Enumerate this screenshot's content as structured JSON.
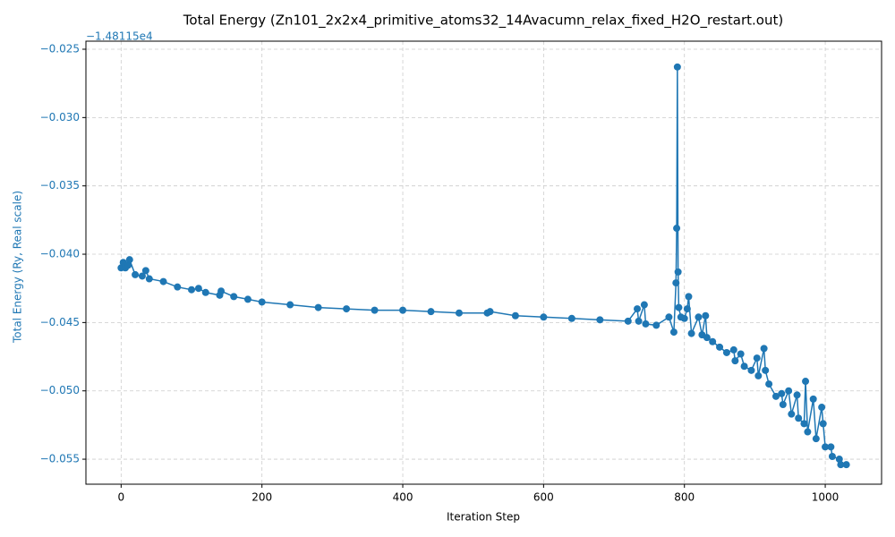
{
  "chart_data": {
    "type": "line",
    "title": "Total Energy (Zn101_2x2x4_primitive_atoms32_14Avacumn_relax_fixed_H2O_restart.out)",
    "xlabel": "Iteration Step",
    "ylabel": "Total Energy (Ry, Real scale)",
    "y_offset_label": "−1.48115e4",
    "color": "#1f77b4",
    "grid": true,
    "x": [
      0,
      3,
      6,
      10,
      12,
      20,
      30,
      35,
      40,
      60,
      80,
      100,
      110,
      120,
      140,
      142,
      160,
      180,
      200,
      240,
      280,
      320,
      360,
      400,
      440,
      480,
      520,
      524,
      560,
      600,
      640,
      680,
      720,
      733,
      735,
      743,
      745,
      760,
      778,
      785,
      788,
      789,
      790,
      791,
      792,
      795,
      800,
      804,
      806,
      810,
      820,
      825,
      830,
      832,
      840,
      850,
      860,
      870,
      872,
      880,
      885,
      895,
      903,
      905,
      913,
      915,
      920,
      930,
      938,
      940,
      948,
      952,
      960,
      962,
      970,
      972,
      975,
      983,
      987,
      995,
      997,
      1000,
      1008,
      1010,
      1020,
      1022,
      1030
    ],
    "values": [
      -0.041,
      -0.0406,
      -0.041,
      -0.0408,
      -0.0404,
      -0.0415,
      -0.0416,
      -0.0412,
      -0.0418,
      -0.042,
      -0.0424,
      -0.0426,
      -0.0425,
      -0.0428,
      -0.043,
      -0.0427,
      -0.0431,
      -0.0433,
      -0.0435,
      -0.0437,
      -0.0439,
      -0.044,
      -0.0441,
      -0.0441,
      -0.0442,
      -0.0443,
      -0.0443,
      -0.0442,
      -0.0445,
      -0.0446,
      -0.0447,
      -0.0448,
      -0.0449,
      -0.044,
      -0.0449,
      -0.0437,
      -0.0451,
      -0.0452,
      -0.0446,
      -0.0457,
      -0.0421,
      -0.0381,
      -0.0263,
      -0.0413,
      -0.0439,
      -0.0446,
      -0.0447,
      -0.044,
      -0.0431,
      -0.0458,
      -0.0446,
      -0.0459,
      -0.0445,
      -0.0461,
      -0.0464,
      -0.0468,
      -0.0472,
      -0.047,
      -0.0478,
      -0.0473,
      -0.0482,
      -0.0485,
      -0.0476,
      -0.0489,
      -0.0469,
      -0.0485,
      -0.0495,
      -0.0504,
      -0.0502,
      -0.051,
      -0.05,
      -0.0517,
      -0.0503,
      -0.052,
      -0.0524,
      -0.0493,
      -0.053,
      -0.0506,
      -0.0535,
      -0.0512,
      -0.0524,
      -0.0541,
      -0.0541,
      -0.0548,
      -0.055,
      -0.0554,
      -0.0554
    ],
    "xlim": [
      -50,
      1080
    ],
    "ylim": [
      -0.05683,
      -0.02441
    ],
    "xticks": [
      0,
      200,
      400,
      600,
      800,
      1000
    ],
    "yticks": [
      {
        "value": -0.025,
        "label": "−0.025"
      },
      {
        "value": -0.03,
        "label": "−0.030"
      },
      {
        "value": -0.035,
        "label": "−0.035"
      },
      {
        "value": -0.04,
        "label": "−0.040"
      },
      {
        "value": -0.045,
        "label": "−0.045"
      },
      {
        "value": -0.05,
        "label": "−0.050"
      },
      {
        "value": -0.055,
        "label": "−0.055"
      }
    ]
  }
}
